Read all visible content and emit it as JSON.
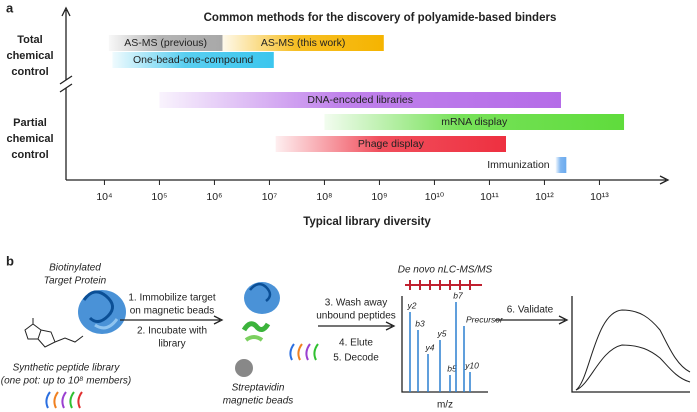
{
  "panel_labels": [
    "a",
    "b"
  ],
  "chart_data": {
    "type": "range",
    "title": "Common methods for the discovery of polyamide-based binders",
    "xlabel": "Typical library diversity",
    "y_groups": [
      [
        "Total",
        "chemical",
        "control"
      ],
      [
        "Partial",
        "chemical",
        "control"
      ]
    ],
    "log_x": true,
    "xlim": [
      2000,
      200000000000000
    ],
    "xticks": [
      {
        "value": 10000,
        "label": "10⁴"
      },
      {
        "value": 100000,
        "label": "10⁵"
      },
      {
        "value": 1000000,
        "label": "10⁶"
      },
      {
        "value": 10000000,
        "label": "10⁷"
      },
      {
        "value": 100000000,
        "label": "10⁸"
      },
      {
        "value": 1000000000,
        "label": "10⁹"
      },
      {
        "value": 10000000000,
        "label": "10¹⁰"
      },
      {
        "value": 100000000000,
        "label": "10¹¹"
      },
      {
        "value": 1000000000000,
        "label": "10¹²"
      },
      {
        "value": 10000000000000,
        "label": "10¹³"
      }
    ],
    "series": [
      {
        "name": "AS-MS (previous)",
        "color": "#a8a8a8",
        "values": [
          12000,
          1400000
        ]
      },
      {
        "name": "AS-MS (this work)",
        "color": "#f5b400",
        "values": [
          1400000,
          1200000000
        ]
      },
      {
        "name": "One-bead-one-compound",
        "color": "#3cc6ee",
        "values": [
          14000,
          12000000
        ]
      },
      {
        "name": "DNA-encoded libraries",
        "color": "#b56ce8",
        "values": [
          100000,
          2000000000000
        ]
      },
      {
        "name": "mRNA display",
        "color": "#5fdc3c",
        "values": [
          100000000,
          28000000000000
        ]
      },
      {
        "name": "Phage display",
        "color": "#ee3040",
        "values": [
          13000000,
          200000000000
        ]
      },
      {
        "name": "Immunization",
        "color": "#6aaaee",
        "values": [
          1600000000000,
          2500000000000
        ]
      }
    ]
  },
  "diagram": {
    "protein_label": [
      "Biotinylated",
      "Target Protein"
    ],
    "library_label": [
      "Synthetic peptide library",
      "(one pot: up to 10⁸ members)"
    ],
    "step_1_2": [
      "1. Immobilize target",
      "on magnetic beads",
      "2. Incubate with",
      "library"
    ],
    "beads_label": [
      "Streptavidin",
      "magnetic beads"
    ],
    "step_3_5": [
      "3. Wash away",
      "unbound peptides",
      "4. Elute",
      "5. Decode"
    ],
    "ms_title": "De novo nLC-MS/MS",
    "peaks": [
      "y2",
      "b3",
      "y4",
      "y5",
      "b5",
      "b7",
      "Precursor",
      "y10"
    ],
    "ms_axis": "m/z",
    "step_6": "6. Validate"
  }
}
